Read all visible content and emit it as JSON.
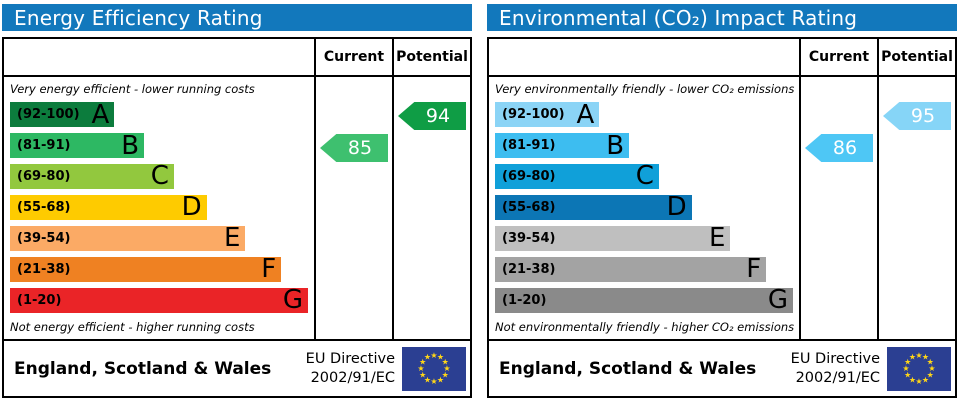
{
  "theme": {
    "header_bg": "#1278bc",
    "header_text": "#ffffff",
    "border": "#000000",
    "flag_bg": "#2b3f92",
    "flag_star": "#ffd617"
  },
  "chart_data": [
    {
      "type": "bar",
      "title": "Energy Efficiency Rating",
      "columns": [
        "Current",
        "Potential"
      ],
      "caption_top": "Very energy efficient - lower running costs",
      "caption_bottom": "Not energy efficient - higher running costs",
      "bands": [
        {
          "grade": "A",
          "range_label": "(92-100)",
          "range": [
            92,
            100
          ],
          "color": "#0c7c3d",
          "width_pct": 35
        },
        {
          "grade": "B",
          "range_label": "(81-91)",
          "range": [
            81,
            91
          ],
          "color": "#2db863",
          "width_pct": 45
        },
        {
          "grade": "C",
          "range_label": "(69-80)",
          "range": [
            69,
            80
          ],
          "color": "#92c83e",
          "width_pct": 55
        },
        {
          "grade": "D",
          "range_label": "(55-68)",
          "range": [
            55,
            68
          ],
          "color": "#fecb00",
          "width_pct": 66
        },
        {
          "grade": "E",
          "range_label": "(39-54)",
          "range": [
            39,
            54
          ],
          "color": "#fbaa65",
          "width_pct": 79
        },
        {
          "grade": "F",
          "range_label": "(21-38)",
          "range": [
            21,
            38
          ],
          "color": "#ef8122",
          "width_pct": 91
        },
        {
          "grade": "G",
          "range_label": "(1-20)",
          "range": [
            1,
            20
          ],
          "color": "#ea2427",
          "width_pct": 100
        }
      ],
      "current": {
        "value": 85,
        "band": "B",
        "color": "#3ec06f"
      },
      "potential": {
        "value": 94,
        "band": "A",
        "color": "#0f9d45"
      },
      "footer": {
        "region": "England, Scotland & Wales",
        "directive_line1": "EU Directive",
        "directive_line2": "2002/91/EC"
      }
    },
    {
      "type": "bar",
      "title": "Environmental (CO₂) Impact Rating",
      "columns": [
        "Current",
        "Potential"
      ],
      "caption_top": "Very environmentally friendly - lower CO₂ emissions",
      "caption_bottom": "Not environmentally friendly - higher CO₂ emissions",
      "bands": [
        {
          "grade": "A",
          "range_label": "(92-100)",
          "range": [
            92,
            100
          ],
          "color": "#8bd4f6",
          "width_pct": 35
        },
        {
          "grade": "B",
          "range_label": "(81-91)",
          "range": [
            81,
            91
          ],
          "color": "#3dbdf0",
          "width_pct": 45
        },
        {
          "grade": "C",
          "range_label": "(69-80)",
          "range": [
            69,
            80
          ],
          "color": "#10a0d9",
          "width_pct": 55
        },
        {
          "grade": "D",
          "range_label": "(55-68)",
          "range": [
            55,
            68
          ],
          "color": "#0c76b5",
          "width_pct": 66
        },
        {
          "grade": "E",
          "range_label": "(39-54)",
          "range": [
            39,
            54
          ],
          "color": "#bfbfbf",
          "width_pct": 79
        },
        {
          "grade": "F",
          "range_label": "(21-38)",
          "range": [
            21,
            38
          ],
          "color": "#a3a3a3",
          "width_pct": 91
        },
        {
          "grade": "G",
          "range_label": "(1-20)",
          "range": [
            1,
            20
          ],
          "color": "#8a8a8a",
          "width_pct": 100
        }
      ],
      "current": {
        "value": 86,
        "band": "B",
        "color": "#4ec7f5"
      },
      "potential": {
        "value": 95,
        "band": "A",
        "color": "#86d5f7"
      },
      "footer": {
        "region": "England, Scotland & Wales",
        "directive_line1": "EU Directive",
        "directive_line2": "2002/91/EC"
      }
    }
  ]
}
